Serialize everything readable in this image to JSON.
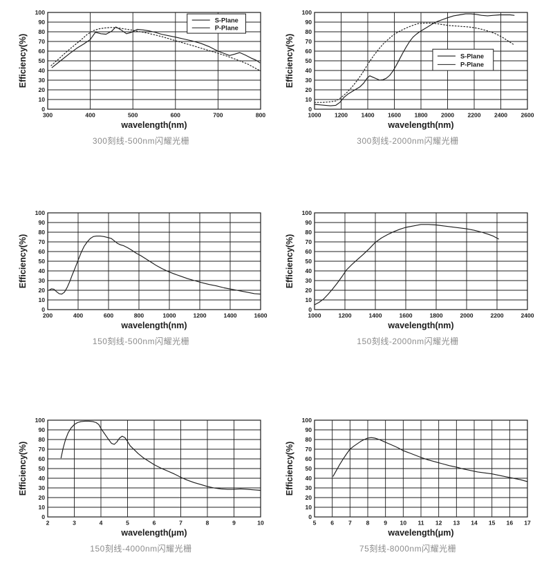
{
  "page": {
    "background": "#ffffff",
    "line_color": "#1c1c1c",
    "caption_color": "#8c8c8c"
  },
  "chart_data": [
    {
      "type": "line",
      "caption": "300刻线-500nm闪耀光栅",
      "xlabel": "wavelength(nm)",
      "ylabel": "Efficiency(%)",
      "xlim": [
        300,
        800
      ],
      "ylim": [
        0,
        100
      ],
      "xticks": [
        300,
        400,
        500,
        600,
        700,
        800
      ],
      "yticks": [
        0,
        10,
        20,
        30,
        40,
        50,
        60,
        70,
        80,
        90,
        100
      ],
      "grid": true,
      "legend": {
        "position": "top-right",
        "fx": 0.655,
        "fy": 0.015,
        "fw": 0.275,
        "fh": 0.2,
        "entries": [
          {
            "label": "S-Plane",
            "line_style": "solid"
          },
          {
            "label": "P-Plane",
            "line_style": "solid"
          }
        ]
      },
      "series": [
        {
          "name": "S-Plane",
          "line_style": "solid",
          "x": [
            310,
            330,
            350,
            370,
            385,
            400,
            412,
            425,
            437,
            450,
            460,
            472,
            485,
            497,
            510,
            523,
            537,
            552,
            567,
            583,
            600,
            620,
            640,
            660,
            680,
            700,
            715,
            727,
            740,
            751,
            764,
            777,
            790,
            798
          ],
          "y": [
            43,
            50,
            57,
            63.5,
            67.5,
            72,
            79.5,
            78,
            77.5,
            80.5,
            85,
            82,
            78,
            79.5,
            82.5,
            82,
            81,
            79.5,
            77.5,
            76,
            74.5,
            72.5,
            70.5,
            68,
            64.5,
            60,
            57.5,
            55.5,
            57,
            58.5,
            56,
            53,
            50.5,
            48
          ]
        },
        {
          "name": "P-Plane",
          "line_style": "dotted",
          "x": [
            308,
            322,
            336,
            350,
            364,
            378,
            392,
            406,
            420,
            435,
            450,
            465,
            480,
            495,
            512,
            530,
            550,
            572,
            595,
            618,
            642,
            668,
            695,
            720,
            745,
            768,
            785,
            800
          ],
          "y": [
            45,
            50.5,
            56,
            61.5,
            66.5,
            71.5,
            77,
            81,
            83,
            84,
            84.5,
            84,
            83,
            82,
            80.5,
            79,
            77,
            74.5,
            71.5,
            68.5,
            65.5,
            62,
            58.5,
            55,
            51,
            47,
            43,
            39.5
          ]
        }
      ]
    },
    {
      "type": "line",
      "caption": "300刻线-2000nm闪耀光栅",
      "xlabel": "wavelength(nm)",
      "ylabel": "Efficiency(%)",
      "xlim": [
        1000,
        2600
      ],
      "ylim": [
        0,
        100
      ],
      "xticks": [
        1000,
        1200,
        1400,
        1600,
        1800,
        2000,
        2200,
        2400,
        2600
      ],
      "yticks": [
        0,
        10,
        20,
        30,
        40,
        50,
        60,
        70,
        80,
        90,
        100
      ],
      "grid": true,
      "legend": {
        "position": "middle-right",
        "fx": 0.555,
        "fy": 0.38,
        "fw": 0.285,
        "fh": 0.22,
        "entries": [
          {
            "label": "S-Plane",
            "line_style": "solid"
          },
          {
            "label": "P-Plane",
            "line_style": "solid"
          }
        ]
      },
      "series": [
        {
          "name": "S-Plane",
          "line_style": "solid",
          "x": [
            1000,
            1040,
            1080,
            1120,
            1160,
            1190,
            1220,
            1250,
            1280,
            1310,
            1340,
            1370,
            1395,
            1415,
            1440,
            1465,
            1490,
            1515,
            1540,
            1565,
            1590,
            1615,
            1640,
            1665,
            1690,
            1715,
            1740,
            1765,
            1790,
            1820,
            1850,
            1885,
            1920,
            1960,
            2000,
            2045,
            2090,
            2135,
            2175,
            2215,
            2255,
            2300,
            2345,
            2390,
            2435,
            2470,
            2500
          ],
          "y": [
            5,
            4.5,
            4,
            3.5,
            4,
            7,
            12,
            15.5,
            18,
            20.5,
            23,
            27,
            32,
            34.5,
            33,
            31.5,
            30,
            30.5,
            32,
            35,
            39.5,
            45.5,
            52,
            58.5,
            64.5,
            70,
            74.5,
            77.5,
            80,
            82.5,
            85,
            88,
            90.5,
            92.5,
            94.5,
            96.5,
            97.5,
            98.5,
            98.5,
            98,
            97,
            96.5,
            97,
            97.5,
            97.5,
            97.5,
            97
          ]
        },
        {
          "name": "P-Plane",
          "line_style": "dotted",
          "x": [
            1000,
            1060,
            1110,
            1160,
            1200,
            1245,
            1285,
            1325,
            1365,
            1405,
            1445,
            1485,
            1520,
            1560,
            1600,
            1645,
            1690,
            1735,
            1780,
            1825,
            1870,
            1915,
            1960,
            2010,
            2060,
            2110,
            2160,
            2210,
            2260,
            2310,
            2360,
            2410,
            2455,
            2500
          ],
          "y": [
            7,
            7,
            7.5,
            8.5,
            12,
            17.5,
            23.5,
            30.5,
            38.5,
            47.5,
            55.5,
            62.5,
            68,
            73,
            77.5,
            81,
            84,
            86.5,
            88.5,
            89,
            89,
            88.5,
            87.5,
            86.5,
            86,
            85.5,
            85,
            84,
            82.5,
            80.5,
            78,
            74.5,
            70.5,
            66.5
          ]
        }
      ]
    },
    {
      "type": "line",
      "caption": "150刻线-500nm闪耀光栅",
      "xlabel": "wavelength(nm)",
      "ylabel": "Efficiency(%)",
      "xlim": [
        200,
        1600
      ],
      "ylim": [
        0,
        100
      ],
      "xticks": [
        200,
        400,
        600,
        800,
        1000,
        1200,
        1400,
        1600
      ],
      "yticks": [
        0,
        10,
        20,
        30,
        40,
        50,
        60,
        70,
        80,
        90,
        100
      ],
      "grid": true,
      "legend": null,
      "series": [
        {
          "name": "Efficiency",
          "line_style": "solid",
          "x": [
            208,
            225,
            242,
            258,
            275,
            292,
            310,
            328,
            345,
            362,
            380,
            400,
            420,
            440,
            460,
            480,
            500,
            520,
            545,
            570,
            595,
            618,
            638,
            658,
            678,
            700,
            725,
            752,
            780,
            810,
            845,
            880,
            915,
            950,
            990,
            1030,
            1075,
            1120,
            1165,
            1210,
            1260,
            1310,
            1360,
            1410,
            1460,
            1510,
            1560,
            1600
          ],
          "y": [
            20,
            21.5,
            21,
            18.5,
            16.5,
            16,
            18,
            23,
            29,
            36,
            43,
            51,
            59,
            65.5,
            70,
            73.5,
            75.5,
            76,
            76,
            75.5,
            74.5,
            73.5,
            71,
            68.5,
            67,
            66,
            64,
            61.5,
            58.5,
            56,
            52.5,
            49,
            45.5,
            42.5,
            39.5,
            37,
            34.5,
            32,
            30,
            28,
            26,
            24.5,
            22.5,
            21,
            19.5,
            18,
            16.5,
            16
          ]
        }
      ]
    },
    {
      "type": "line",
      "caption": "150刻线-2000nm闪耀光栅",
      "xlabel": "wavelength(nm)",
      "ylabel": "Efficiency(%)",
      "xlim": [
        1000,
        2400
      ],
      "ylim": [
        0,
        100
      ],
      "xticks": [
        1000,
        1200,
        1400,
        1600,
        1800,
        2000,
        2200,
        2400
      ],
      "yticks": [
        0,
        10,
        20,
        30,
        40,
        50,
        60,
        70,
        80,
        90,
        100
      ],
      "grid": true,
      "legend": null,
      "series": [
        {
          "name": "Efficiency",
          "line_style": "solid",
          "x": [
            1000,
            1030,
            1060,
            1090,
            1120,
            1150,
            1180,
            1210,
            1245,
            1280,
            1320,
            1360,
            1400,
            1440,
            1480,
            1520,
            1560,
            1600,
            1650,
            1700,
            1750,
            1800,
            1850,
            1900,
            1950,
            2000,
            2050,
            2100,
            2140,
            2175,
            2210
          ],
          "y": [
            5,
            7.5,
            11,
            16,
            21.5,
            27.5,
            34,
            41,
            46.5,
            51.5,
            57,
            63,
            69.5,
            74,
            77.5,
            80.5,
            83,
            85,
            86.5,
            88,
            88,
            87.5,
            86.5,
            85.5,
            84.5,
            83.5,
            82,
            80,
            78,
            76,
            73
          ]
        }
      ]
    },
    {
      "type": "line",
      "caption": "150刻线-4000nm闪耀光栅",
      "xlabel": "wavelength(μm)",
      "ylabel": "Efficiency(%)",
      "xlim": [
        2,
        10
      ],
      "ylim": [
        0,
        100
      ],
      "xticks": [
        2,
        3,
        4,
        5,
        6,
        7,
        8,
        9,
        10
      ],
      "yticks": [
        0,
        10,
        20,
        30,
        40,
        50,
        60,
        70,
        80,
        90,
        100
      ],
      "grid": true,
      "legend": null,
      "series": [
        {
          "name": "Efficiency",
          "line_style": "solid",
          "x": [
            2.5,
            2.58,
            2.67,
            2.77,
            2.88,
            3.0,
            3.12,
            3.25,
            3.4,
            3.55,
            3.7,
            3.82,
            3.92,
            4.0,
            4.1,
            4.2,
            4.3,
            4.4,
            4.5,
            4.6,
            4.7,
            4.8,
            4.9,
            5.0,
            5.1,
            5.25,
            5.4,
            5.6,
            5.8,
            6.0,
            6.25,
            6.5,
            6.75,
            7.0,
            7.25,
            7.5,
            7.75,
            8.0,
            8.25,
            8.5,
            8.75,
            9.0,
            9.25,
            9.5,
            9.75,
            10.0
          ],
          "y": [
            61,
            71,
            80,
            87,
            92,
            95.5,
            97.5,
            98.5,
            99,
            99,
            98.5,
            97.5,
            95.5,
            91.5,
            87.5,
            83.5,
            79.5,
            76,
            75,
            77.5,
            81.5,
            83.5,
            82,
            78,
            73.5,
            69.5,
            65.5,
            61,
            57.5,
            54,
            50.5,
            47.5,
            44.5,
            41,
            38,
            35.5,
            33.5,
            31.5,
            30,
            29,
            28.5,
            28.5,
            29,
            28.5,
            28,
            27.5
          ]
        }
      ]
    },
    {
      "type": "line",
      "caption": "75刻线-8000nm闪耀光栅",
      "xlabel": "wavelength(μm)",
      "ylabel": "Efficiency(%)",
      "xlim": [
        5,
        17
      ],
      "ylim": [
        0,
        100
      ],
      "xticks": [
        5,
        6,
        7,
        8,
        9,
        10,
        11,
        12,
        13,
        14,
        15,
        16,
        17
      ],
      "yticks": [
        0,
        10,
        20,
        30,
        40,
        50,
        60,
        70,
        80,
        90,
        100
      ],
      "grid": true,
      "legend": null,
      "series": [
        {
          "name": "Efficiency",
          "line_style": "solid",
          "x": [
            6.05,
            6.2,
            6.4,
            6.6,
            6.8,
            7.0,
            7.2,
            7.4,
            7.6,
            7.8,
            8.0,
            8.2,
            8.4,
            8.65,
            8.9,
            9.15,
            9.4,
            9.7,
            10.0,
            10.3,
            10.65,
            11.0,
            11.4,
            11.8,
            12.2,
            12.6,
            13.0,
            13.4,
            13.8,
            14.2,
            14.6,
            15.0,
            15.4,
            15.8,
            16.2,
            16.6,
            17.0
          ],
          "y": [
            42,
            47,
            53.5,
            59.5,
            65,
            70,
            73,
            75.5,
            78,
            80,
            81.5,
            82,
            81.5,
            80,
            78,
            76,
            74,
            71.5,
            68.5,
            66.5,
            64,
            61.5,
            59,
            57,
            55,
            53,
            51.5,
            49.5,
            48,
            46.5,
            45.5,
            44.5,
            43,
            41.5,
            40,
            38.5,
            36.5
          ]
        }
      ]
    }
  ]
}
